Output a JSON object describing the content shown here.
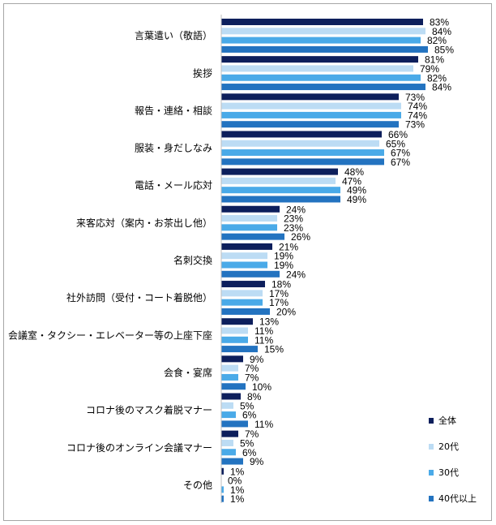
{
  "chart_data": {
    "type": "bar",
    "orientation": "horizontal",
    "title": "",
    "xlabel": "",
    "ylabel": "",
    "xlim": [
      0,
      100
    ],
    "grid": false,
    "legend_position": "bottom-right",
    "value_suffix": "%",
    "categories": [
      "言葉遣い（敬語）",
      "挨拶",
      "報告・連絡・相談",
      "服装・身だしなみ",
      "電話・メール応対",
      "来客応対（案内・お茶出し他）",
      "名刺交換",
      "社外訪問（受付・コート着脱他）",
      "会議室・タクシー・エレベーター等の上座下座",
      "会食・宴席",
      "コロナ後のマスク着脱マナー",
      "コロナ後のオンライン会議マナー",
      "その他"
    ],
    "series": [
      {
        "name": "全体",
        "color": "#0d1f5c",
        "values": [
          83,
          81,
          73,
          66,
          48,
          24,
          21,
          18,
          13,
          9,
          8,
          7,
          1
        ]
      },
      {
        "name": "20代",
        "color": "#bcdcf4",
        "values": [
          84,
          79,
          74,
          65,
          47,
          23,
          19,
          17,
          11,
          7,
          5,
          5,
          0
        ]
      },
      {
        "name": "30代",
        "color": "#4aaae8",
        "values": [
          82,
          82,
          74,
          67,
          49,
          23,
          19,
          17,
          11,
          7,
          6,
          6,
          1
        ]
      },
      {
        "name": "40代以上",
        "color": "#2373c0",
        "values": [
          85,
          84,
          73,
          67,
          49,
          26,
          24,
          20,
          15,
          10,
          11,
          9,
          1
        ]
      }
    ]
  }
}
